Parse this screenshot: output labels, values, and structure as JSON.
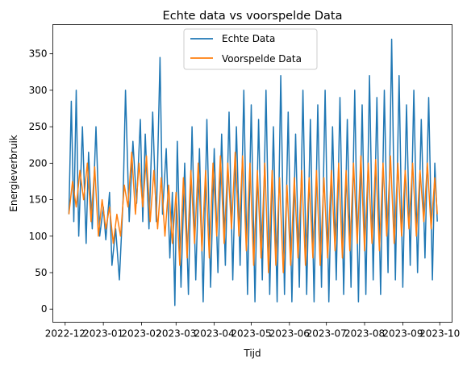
{
  "chart_data": {
    "type": "line",
    "title": "Echte data vs voorspelde Data",
    "xlabel": "Tijd",
    "ylabel": "Energieverbruik",
    "x_tick_labels": [
      "2022-12",
      "2023-01",
      "2023-02",
      "2023-03",
      "2023-04",
      "2023-05",
      "2023-06",
      "2023-07",
      "2023-08",
      "2023-09",
      "2023-10"
    ],
    "y_ticks": [
      0,
      50,
      100,
      150,
      200,
      250,
      300,
      350
    ],
    "xlim": [
      "2022-11-21",
      "2023-10-11"
    ],
    "ylim": [
      -18,
      390
    ],
    "grid": false,
    "legend_position": "upper center",
    "series": [
      {
        "name": "Echte Data",
        "color": "#1f77b4",
        "points": [
          [
            "2022-12-04",
            130
          ],
          [
            "2022-12-06",
            285
          ],
          [
            "2022-12-08",
            120
          ],
          [
            "2022-12-10",
            300
          ],
          [
            "2022-12-12",
            100
          ],
          [
            "2022-12-15",
            250
          ],
          [
            "2022-12-18",
            90
          ],
          [
            "2022-12-20",
            215
          ],
          [
            "2022-12-23",
            110
          ],
          [
            "2022-12-26",
            250
          ],
          [
            "2022-12-29",
            100
          ],
          [
            "2023-01-01",
            140
          ],
          [
            "2023-01-03",
            95
          ],
          [
            "2023-01-06",
            160
          ],
          [
            "2023-01-08",
            60
          ],
          [
            "2023-01-11",
            110
          ],
          [
            "2023-01-14",
            40
          ],
          [
            "2023-01-17",
            150
          ],
          [
            "2023-01-19",
            300
          ],
          [
            "2023-01-22",
            120
          ],
          [
            "2023-01-25",
            230
          ],
          [
            "2023-01-28",
            145
          ],
          [
            "2023-01-31",
            260
          ],
          [
            "2023-02-02",
            120
          ],
          [
            "2023-02-04",
            240
          ],
          [
            "2023-02-07",
            110
          ],
          [
            "2023-02-10",
            270
          ],
          [
            "2023-02-13",
            120
          ],
          [
            "2023-02-16",
            345
          ],
          [
            "2023-02-18",
            130
          ],
          [
            "2023-02-21",
            220
          ],
          [
            "2023-02-24",
            70
          ],
          [
            "2023-02-26",
            160
          ],
          [
            "2023-02-28",
            5
          ],
          [
            "2023-03-02",
            230
          ],
          [
            "2023-03-05",
            30
          ],
          [
            "2023-03-08",
            200
          ],
          [
            "2023-03-11",
            20
          ],
          [
            "2023-03-14",
            250
          ],
          [
            "2023-03-17",
            40
          ],
          [
            "2023-03-20",
            220
          ],
          [
            "2023-03-23",
            10
          ],
          [
            "2023-03-26",
            260
          ],
          [
            "2023-03-29",
            30
          ],
          [
            "2023-04-01",
            220
          ],
          [
            "2023-04-04",
            50
          ],
          [
            "2023-04-07",
            240
          ],
          [
            "2023-04-10",
            60
          ],
          [
            "2023-04-13",
            270
          ],
          [
            "2023-04-16",
            40
          ],
          [
            "2023-04-19",
            250
          ],
          [
            "2023-04-22",
            60
          ],
          [
            "2023-04-25",
            300
          ],
          [
            "2023-04-28",
            20
          ],
          [
            "2023-05-01",
            280
          ],
          [
            "2023-05-04",
            10
          ],
          [
            "2023-05-07",
            260
          ],
          [
            "2023-05-10",
            40
          ],
          [
            "2023-05-13",
            300
          ],
          [
            "2023-05-16",
            20
          ],
          [
            "2023-05-19",
            250
          ],
          [
            "2023-05-22",
            10
          ],
          [
            "2023-05-25",
            320
          ],
          [
            "2023-05-28",
            20
          ],
          [
            "2023-05-31",
            270
          ],
          [
            "2023-06-03",
            10
          ],
          [
            "2023-06-06",
            240
          ],
          [
            "2023-06-09",
            30
          ],
          [
            "2023-06-12",
            300
          ],
          [
            "2023-06-15",
            20
          ],
          [
            "2023-06-18",
            260
          ],
          [
            "2023-06-21",
            10
          ],
          [
            "2023-06-24",
            280
          ],
          [
            "2023-06-27",
            30
          ],
          [
            "2023-06-30",
            300
          ],
          [
            "2023-07-03",
            10
          ],
          [
            "2023-07-06",
            250
          ],
          [
            "2023-07-09",
            40
          ],
          [
            "2023-07-12",
            290
          ],
          [
            "2023-07-15",
            20
          ],
          [
            "2023-07-18",
            260
          ],
          [
            "2023-07-21",
            30
          ],
          [
            "2023-07-24",
            300
          ],
          [
            "2023-07-27",
            10
          ],
          [
            "2023-07-30",
            280
          ],
          [
            "2023-08-02",
            20
          ],
          [
            "2023-08-05",
            320
          ],
          [
            "2023-08-08",
            40
          ],
          [
            "2023-08-11",
            290
          ],
          [
            "2023-08-14",
            20
          ],
          [
            "2023-08-17",
            300
          ],
          [
            "2023-08-20",
            50
          ],
          [
            "2023-08-23",
            370
          ],
          [
            "2023-08-26",
            40
          ],
          [
            "2023-08-29",
            320
          ],
          [
            "2023-09-01",
            30
          ],
          [
            "2023-09-04",
            280
          ],
          [
            "2023-09-07",
            60
          ],
          [
            "2023-09-10",
            300
          ],
          [
            "2023-09-13",
            50
          ],
          [
            "2023-09-16",
            260
          ],
          [
            "2023-09-19",
            70
          ],
          [
            "2023-09-22",
            290
          ],
          [
            "2023-09-25",
            40
          ],
          [
            "2023-09-27",
            200
          ],
          [
            "2023-09-29",
            120
          ]
        ]
      },
      {
        "name": "Voorspelde Data",
        "color": "#ff7f0e",
        "points": [
          [
            "2022-12-04",
            130
          ],
          [
            "2022-12-07",
            175
          ],
          [
            "2022-12-10",
            140
          ],
          [
            "2022-12-13",
            190
          ],
          [
            "2022-12-16",
            150
          ],
          [
            "2022-12-19",
            200
          ],
          [
            "2022-12-22",
            120
          ],
          [
            "2022-12-25",
            195
          ],
          [
            "2022-12-28",
            100
          ],
          [
            "2022-12-31",
            150
          ],
          [
            "2023-01-03",
            110
          ],
          [
            "2023-01-06",
            140
          ],
          [
            "2023-01-09",
            90
          ],
          [
            "2023-01-12",
            130
          ],
          [
            "2023-01-15",
            100
          ],
          [
            "2023-01-18",
            170
          ],
          [
            "2023-01-21",
            140
          ],
          [
            "2023-01-24",
            215
          ],
          [
            "2023-01-27",
            130
          ],
          [
            "2023-01-30",
            200
          ],
          [
            "2023-02-02",
            140
          ],
          [
            "2023-02-05",
            210
          ],
          [
            "2023-02-08",
            120
          ],
          [
            "2023-02-11",
            190
          ],
          [
            "2023-02-14",
            110
          ],
          [
            "2023-02-17",
            180
          ],
          [
            "2023-02-20",
            100
          ],
          [
            "2023-02-23",
            170
          ],
          [
            "2023-02-26",
            90
          ],
          [
            "2023-03-01",
            160
          ],
          [
            "2023-03-04",
            60
          ],
          [
            "2023-03-07",
            180
          ],
          [
            "2023-03-10",
            70
          ],
          [
            "2023-03-13",
            190
          ],
          [
            "2023-03-16",
            90
          ],
          [
            "2023-03-19",
            200
          ],
          [
            "2023-03-22",
            80
          ],
          [
            "2023-03-25",
            190
          ],
          [
            "2023-03-28",
            70
          ],
          [
            "2023-03-31",
            200
          ],
          [
            "2023-04-03",
            100
          ],
          [
            "2023-04-06",
            210
          ],
          [
            "2023-04-09",
            90
          ],
          [
            "2023-04-12",
            200
          ],
          [
            "2023-04-15",
            110
          ],
          [
            "2023-04-18",
            215
          ],
          [
            "2023-04-21",
            100
          ],
          [
            "2023-04-24",
            210
          ],
          [
            "2023-04-27",
            80
          ],
          [
            "2023-04-30",
            200
          ],
          [
            "2023-05-03",
            60
          ],
          [
            "2023-05-06",
            190
          ],
          [
            "2023-05-09",
            70
          ],
          [
            "2023-05-12",
            200
          ],
          [
            "2023-05-15",
            50
          ],
          [
            "2023-05-18",
            190
          ],
          [
            "2023-05-21",
            60
          ],
          [
            "2023-05-24",
            180
          ],
          [
            "2023-05-27",
            50
          ],
          [
            "2023-05-30",
            170
          ],
          [
            "2023-06-02",
            60
          ],
          [
            "2023-06-05",
            180
          ],
          [
            "2023-06-08",
            70
          ],
          [
            "2023-06-11",
            190
          ],
          [
            "2023-06-14",
            60
          ],
          [
            "2023-06-17",
            180
          ],
          [
            "2023-06-20",
            70
          ],
          [
            "2023-06-23",
            190
          ],
          [
            "2023-06-26",
            60
          ],
          [
            "2023-06-29",
            180
          ],
          [
            "2023-07-02",
            70
          ],
          [
            "2023-07-05",
            190
          ],
          [
            "2023-07-08",
            80
          ],
          [
            "2023-07-11",
            200
          ],
          [
            "2023-07-14",
            70
          ],
          [
            "2023-07-17",
            190
          ],
          [
            "2023-07-20",
            80
          ],
          [
            "2023-07-23",
            200
          ],
          [
            "2023-07-26",
            90
          ],
          [
            "2023-07-29",
            210
          ],
          [
            "2023-08-01",
            80
          ],
          [
            "2023-08-04",
            200
          ],
          [
            "2023-08-07",
            90
          ],
          [
            "2023-08-10",
            205
          ],
          [
            "2023-08-13",
            80
          ],
          [
            "2023-08-16",
            200
          ],
          [
            "2023-08-19",
            100
          ],
          [
            "2023-08-22",
            210
          ],
          [
            "2023-08-25",
            90
          ],
          [
            "2023-08-28",
            200
          ],
          [
            "2023-08-31",
            100
          ],
          [
            "2023-09-03",
            190
          ],
          [
            "2023-09-06",
            110
          ],
          [
            "2023-09-09",
            200
          ],
          [
            "2023-09-12",
            100
          ],
          [
            "2023-09-15",
            190
          ],
          [
            "2023-09-18",
            120
          ],
          [
            "2023-09-21",
            200
          ],
          [
            "2023-09-24",
            110
          ],
          [
            "2023-09-27",
            180
          ],
          [
            "2023-09-29",
            130
          ]
        ]
      }
    ]
  }
}
